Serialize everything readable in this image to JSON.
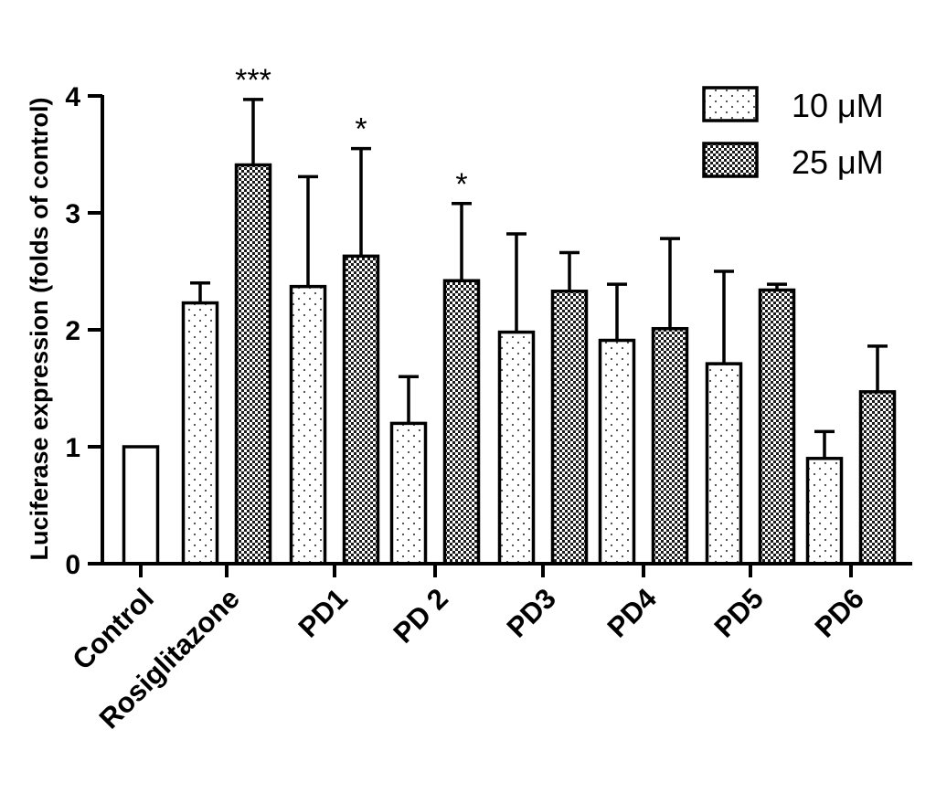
{
  "chart_data": {
    "type": "bar",
    "title": "",
    "xlabel": "",
    "ylabel": "Luciferase expression (folds of control)",
    "ylim": [
      0,
      4
    ],
    "yticks": [
      0,
      1,
      2,
      3,
      4
    ],
    "categories": [
      "Control",
      "Rosiglitazone",
      "PD1",
      "PD 2",
      "PD3",
      "PD4",
      "PD5",
      "PD6"
    ],
    "control": {
      "name": "Control",
      "value": 1.0,
      "pattern": "none"
    },
    "series": [
      {
        "name": "10 μM",
        "pattern": "sparse-dots",
        "values": [
          null,
          2.23,
          2.37,
          1.2,
          1.98,
          1.91,
          1.71,
          0.9
        ],
        "errors": [
          null,
          0.17,
          0.94,
          0.4,
          0.84,
          0.48,
          0.79,
          0.23
        ],
        "significance": [
          null,
          "",
          "",
          "",
          "",
          "",
          "",
          ""
        ]
      },
      {
        "name": "25 μM",
        "pattern": "dense-checker",
        "values": [
          null,
          3.41,
          2.63,
          2.42,
          2.33,
          2.01,
          2.34,
          1.47
        ],
        "errors": [
          null,
          0.56,
          0.92,
          0.66,
          0.33,
          0.77,
          0.05,
          0.39
        ],
        "significance": [
          null,
          "***",
          "*",
          "*",
          "",
          "",
          "",
          ""
        ]
      }
    ],
    "legend": {
      "position": "top-right"
    },
    "grid": false
  }
}
